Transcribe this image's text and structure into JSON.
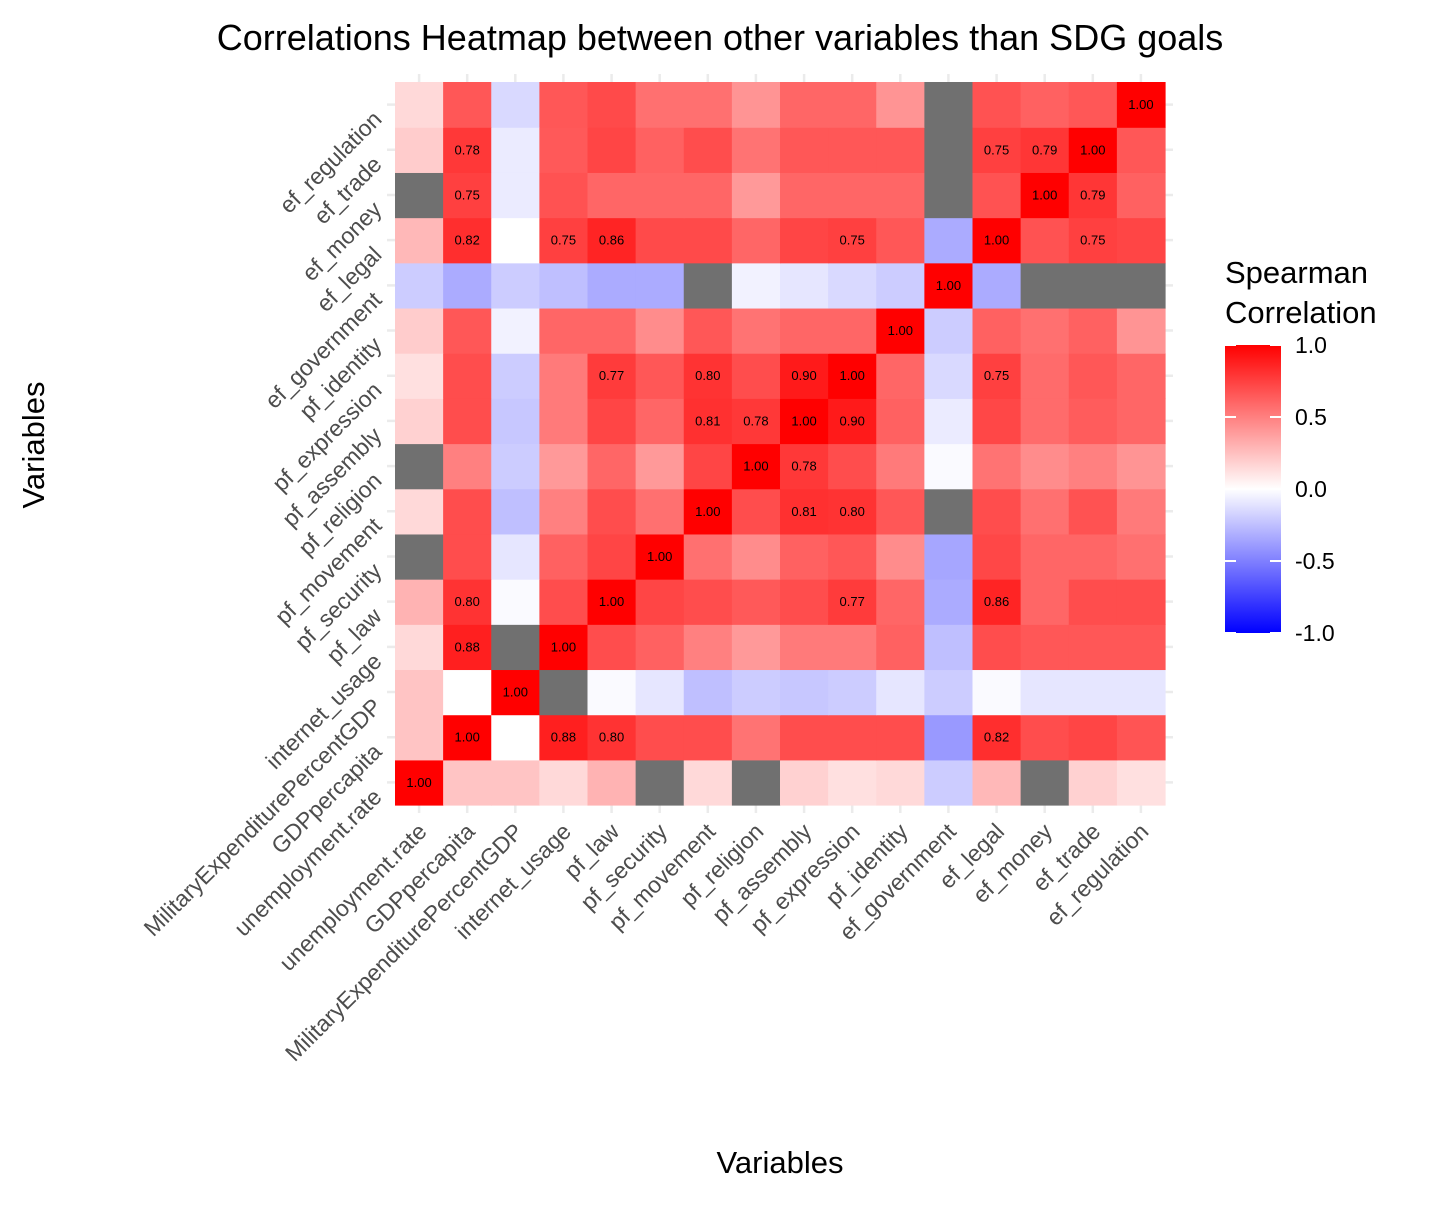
{
  "chart_data": {
    "type": "heatmap",
    "title": "Correlations Heatmap between other variables than SDG goals",
    "xlabel": "Variables",
    "ylabel": "Variables",
    "variables": [
      "unemployment.rate",
      "GDPpercapita",
      "MilitaryExpenditurePercentGDP",
      "internet_usage",
      "pf_law",
      "pf_security",
      "pf_movement",
      "pf_religion",
      "pf_assembly",
      "pf_expression",
      "pf_identity",
      "ef_government",
      "ef_legal",
      "ef_money",
      "ef_trade",
      "ef_regulation"
    ],
    "label_threshold": 0.75,
    "matrix": [
      [
        1.0,
        0.23,
        0.23,
        0.15,
        0.3,
        null,
        0.15,
        null,
        0.18,
        0.12,
        0.15,
        -0.2,
        0.28,
        null,
        0.18,
        0.12
      ],
      [
        0.23,
        1.0,
        0.0,
        0.88,
        0.8,
        0.7,
        0.7,
        0.55,
        0.7,
        0.7,
        0.7,
        -0.4,
        0.82,
        0.7,
        0.73,
        0.67
      ],
      [
        0.23,
        0.0,
        1.0,
        null,
        -0.02,
        -0.1,
        -0.25,
        -0.2,
        -0.22,
        -0.2,
        -0.1,
        -0.2,
        -0.02,
        -0.1,
        -0.1,
        -0.1
      ],
      [
        0.15,
        0.88,
        null,
        1.0,
        0.7,
        0.62,
        0.5,
        0.4,
        0.52,
        0.52,
        0.62,
        -0.25,
        0.7,
        0.66,
        0.66,
        0.66
      ],
      [
        0.3,
        0.8,
        -0.02,
        0.7,
        1.0,
        0.73,
        0.7,
        0.65,
        0.7,
        0.77,
        0.6,
        -0.33,
        0.86,
        0.6,
        0.7,
        0.7
      ],
      [
        null,
        0.7,
        -0.1,
        0.62,
        0.73,
        1.0,
        0.56,
        0.45,
        0.62,
        0.66,
        0.45,
        -0.35,
        0.72,
        0.6,
        0.6,
        0.56
      ],
      [
        0.15,
        0.7,
        -0.25,
        0.5,
        0.7,
        0.56,
        1.0,
        0.7,
        0.81,
        0.8,
        0.66,
        null,
        0.7,
        0.56,
        0.68,
        0.52
      ],
      [
        null,
        0.5,
        -0.2,
        0.4,
        0.6,
        0.4,
        0.73,
        1.0,
        0.78,
        0.7,
        0.52,
        -0.02,
        0.55,
        0.45,
        0.5,
        0.42
      ],
      [
        0.18,
        0.7,
        -0.22,
        0.52,
        0.73,
        0.6,
        0.81,
        0.78,
        1.0,
        0.9,
        0.62,
        -0.08,
        0.72,
        0.58,
        0.64,
        0.6
      ],
      [
        0.12,
        0.7,
        -0.2,
        0.52,
        0.77,
        0.66,
        0.8,
        0.7,
        0.9,
        1.0,
        0.6,
        -0.15,
        0.75,
        0.58,
        0.66,
        0.6
      ],
      [
        0.2,
        0.66,
        -0.05,
        0.6,
        0.6,
        0.45,
        0.66,
        0.55,
        0.6,
        0.6,
        1.0,
        -0.2,
        0.62,
        0.56,
        0.62,
        0.42
      ],
      [
        -0.2,
        -0.33,
        -0.2,
        -0.25,
        -0.33,
        -0.33,
        null,
        -0.05,
        -0.1,
        -0.15,
        -0.2,
        1.0,
        -0.33,
        null,
        null,
        null
      ],
      [
        0.28,
        0.82,
        0.0,
        0.75,
        0.86,
        0.71,
        0.71,
        0.6,
        0.73,
        0.75,
        0.66,
        -0.33,
        1.0,
        0.68,
        0.75,
        0.73
      ],
      [
        null,
        0.75,
        -0.08,
        0.68,
        0.6,
        0.6,
        0.6,
        0.4,
        0.6,
        0.6,
        0.6,
        null,
        0.68,
        1.0,
        0.79,
        0.62
      ],
      [
        0.2,
        0.78,
        -0.08,
        0.65,
        0.73,
        0.62,
        0.7,
        0.55,
        0.66,
        0.66,
        0.66,
        null,
        0.75,
        0.79,
        1.0,
        0.66
      ],
      [
        0.15,
        0.66,
        -0.15,
        0.66,
        0.71,
        0.56,
        0.56,
        0.42,
        0.6,
        0.6,
        0.42,
        null,
        0.68,
        0.62,
        0.66,
        1.0
      ]
    ],
    "missing_color": "#707070",
    "colorscale": {
      "low": "#0000ff",
      "mid": "#ffffff",
      "high": "#ff0000",
      "limits": [
        -1,
        1
      ]
    },
    "legend": {
      "title_line1": "Spearman",
      "title_line2": "Correlation",
      "ticks": [
        "1.0",
        "0.5",
        "0.0",
        "-0.5",
        "-1.0"
      ],
      "tick_values": [
        1.0,
        0.5,
        0.0,
        -0.5,
        -1.0
      ],
      "position": "right"
    },
    "grid": true
  }
}
